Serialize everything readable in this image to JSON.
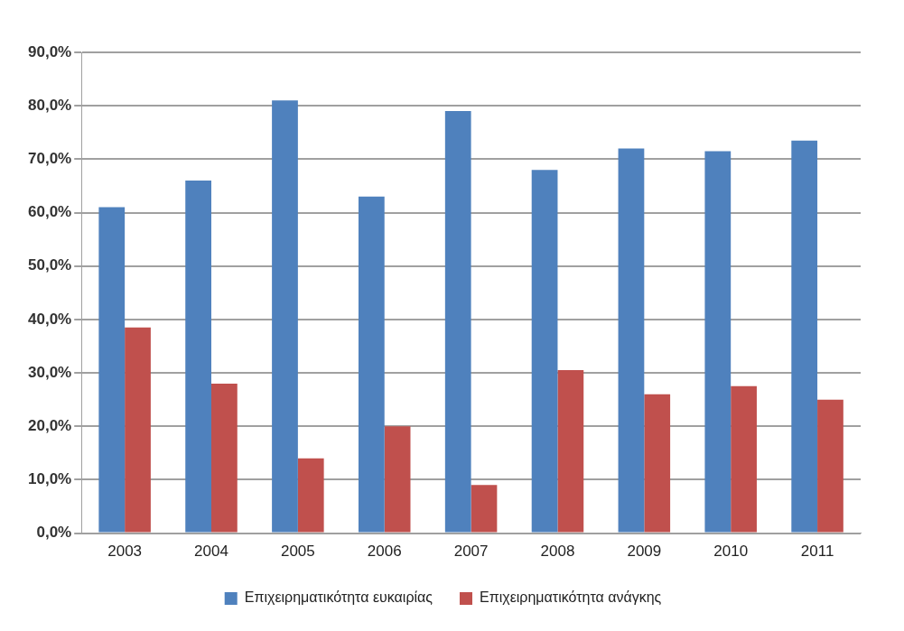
{
  "chart_data": {
    "type": "bar",
    "categories": [
      "2003",
      "2004",
      "2005",
      "2006",
      "2007",
      "2008",
      "2009",
      "2010",
      "2011"
    ],
    "series": [
      {
        "name": "Επιχειρηματικότητα ευκαιρίας",
        "color": "#4f81bd",
        "values": [
          61,
          66,
          81,
          63,
          79,
          68,
          72,
          71.5,
          73.5
        ]
      },
      {
        "name": "Επιχειρηματικότητα ανάγκης",
        "color": "#c0504d",
        "values": [
          38.5,
          28,
          14,
          20,
          9,
          30.5,
          26,
          27.5,
          25
        ]
      }
    ],
    "ylim": [
      0,
      90
    ],
    "yticks": [
      {
        "value": 0,
        "label": "0,0%"
      },
      {
        "value": 10,
        "label": "10,0%"
      },
      {
        "value": 20,
        "label": "20,0%"
      },
      {
        "value": 30,
        "label": "30,0%"
      },
      {
        "value": 40,
        "label": "40,0%"
      },
      {
        "value": 50,
        "label": "50,0%"
      },
      {
        "value": 60,
        "label": "60,0%"
      },
      {
        "value": 70,
        "label": "70,0%"
      },
      {
        "value": 80,
        "label": "80,0%"
      },
      {
        "value": 90,
        "label": "90,0%"
      }
    ],
    "grid": "y",
    "legend": "bottom"
  }
}
